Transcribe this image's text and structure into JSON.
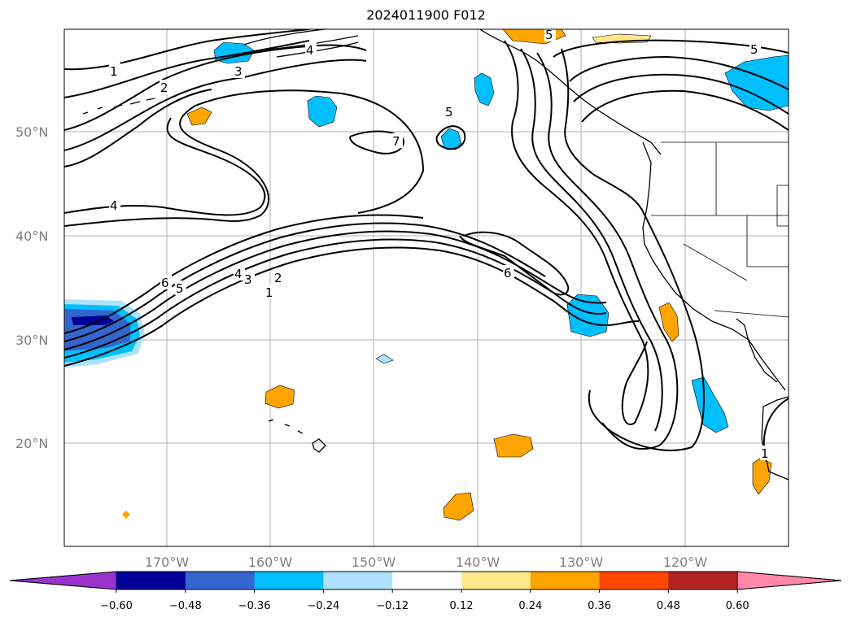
{
  "title": "2024011900 F012",
  "lat_labels": [
    {
      "lat": 50,
      "text": "50°N"
    },
    {
      "lat": 40,
      "text": "40°N"
    },
    {
      "lat": 30,
      "text": "30°N"
    },
    {
      "lat": 20,
      "text": "20°N"
    }
  ],
  "lon_labels": [
    {
      "lon": -170,
      "text": "170°W"
    },
    {
      "lon": -160,
      "text": "160°W"
    },
    {
      "lon": -150,
      "text": "150°W"
    },
    {
      "lon": -140,
      "text": "140°W"
    },
    {
      "lon": -130,
      "text": "130°W"
    },
    {
      "lon": -120,
      "text": "120°W"
    }
  ],
  "colorbar": {
    "ticks": [
      "−0.60",
      "−0.48",
      "−0.36",
      "−0.24",
      "−0.12",
      "0.12",
      "0.24",
      "0.36",
      "0.48",
      "0.60"
    ],
    "colors": [
      "#9933cc",
      "#000099",
      "#3366cc",
      "#00bfff",
      "#aee2ff",
      "#ffffff",
      "#ffe88c",
      "#ffa500",
      "#ff4500",
      "#b22222",
      "#ff88aa"
    ]
  },
  "contour_labels": [
    {
      "text": "1"
    },
    {
      "text": "2"
    },
    {
      "text": "3"
    },
    {
      "text": "4"
    },
    {
      "text": "4"
    },
    {
      "text": "5"
    },
    {
      "text": "7"
    },
    {
      "text": "6"
    },
    {
      "text": "5"
    },
    {
      "text": "4"
    },
    {
      "text": "3"
    },
    {
      "text": "2"
    },
    {
      "text": "1"
    },
    {
      "text": "6"
    },
    {
      "text": "5"
    },
    {
      "text": "5"
    },
    {
      "text": "1"
    }
  ]
}
